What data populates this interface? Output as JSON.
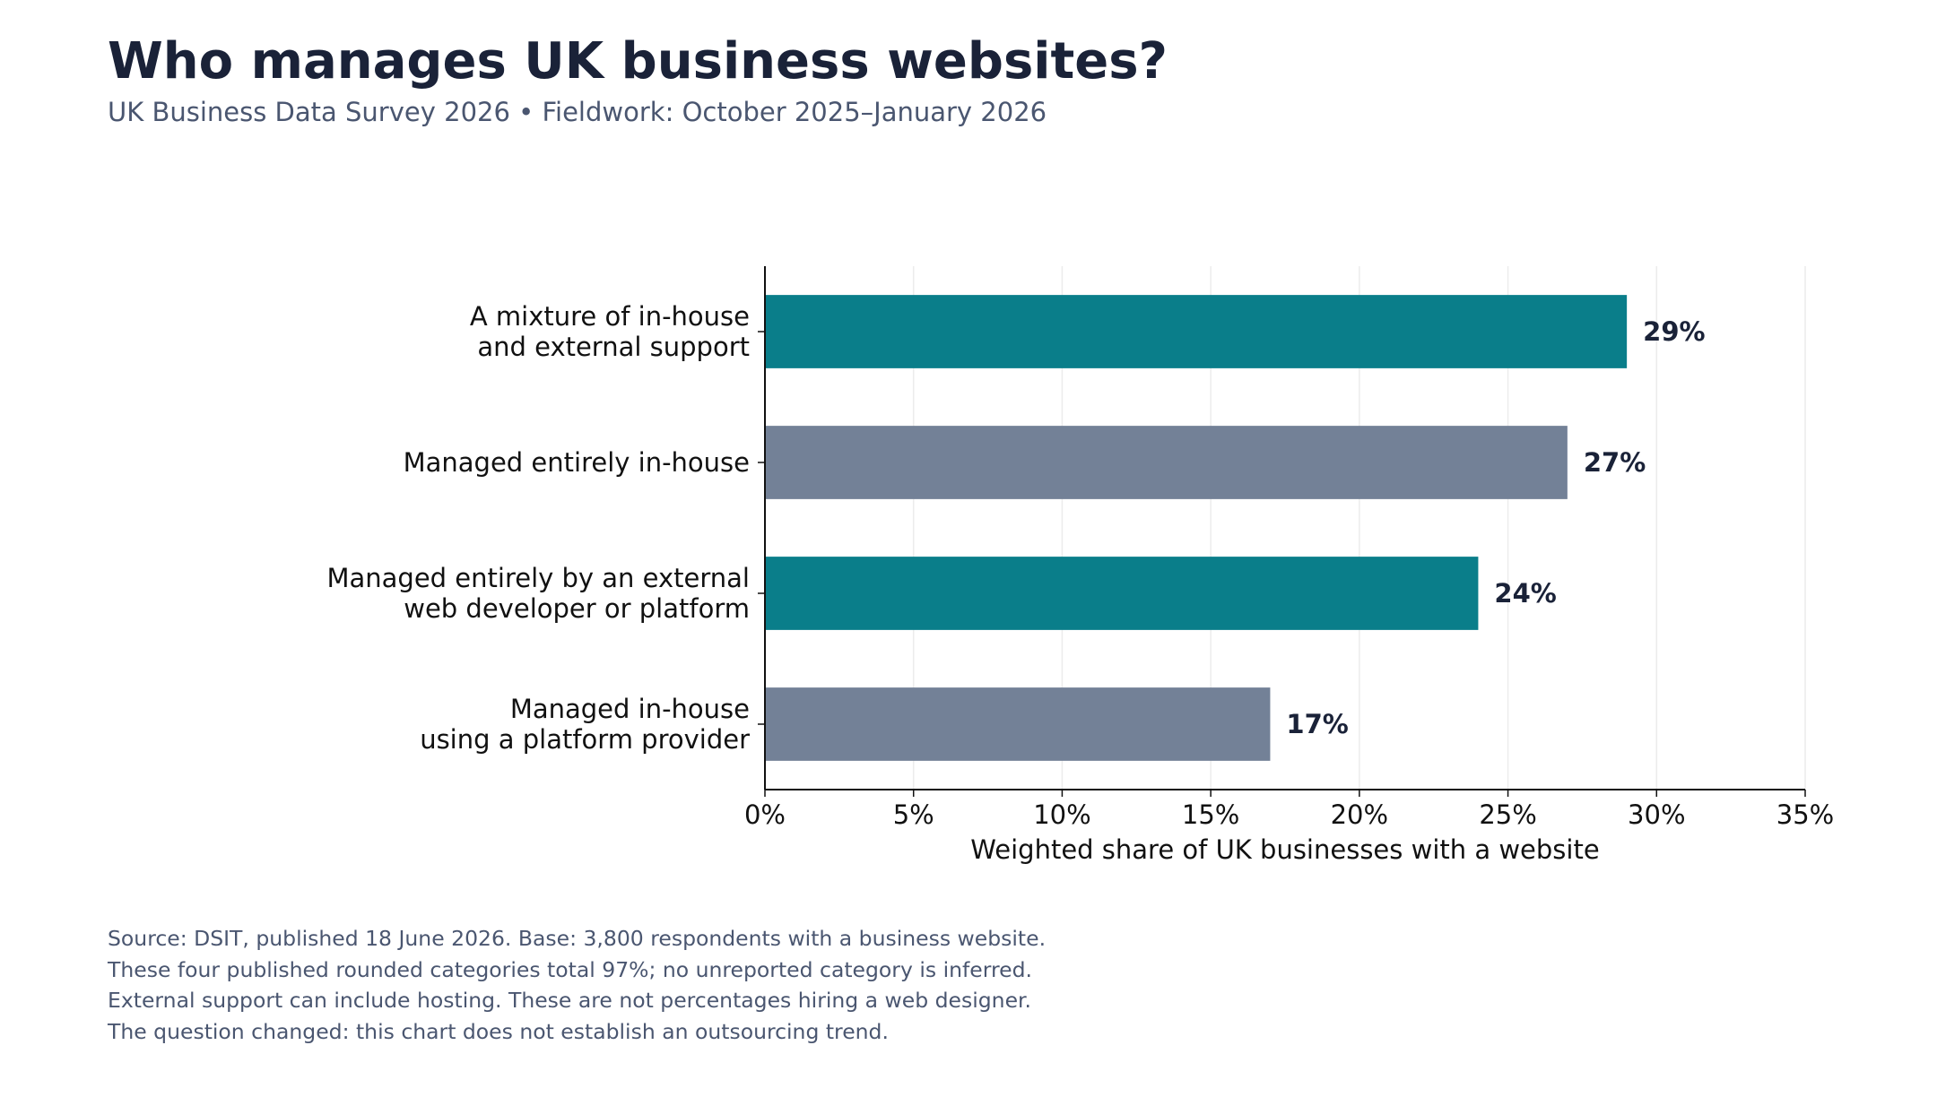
{
  "title": "Who manages UK business websites?",
  "subtitle": "UK Business Data Survey 2026 • Fieldwork: October 2025–January 2026",
  "chart_data": {
    "type": "bar",
    "orientation": "horizontal",
    "categories": [
      [
        "A mixture of in-house",
        "and external support"
      ],
      [
        "Managed entirely in-house"
      ],
      [
        "Managed entirely by an external",
        "web developer or platform"
      ],
      [
        "Managed in-house",
        "using a platform provider"
      ]
    ],
    "values": [
      29,
      27,
      24,
      17
    ],
    "value_labels": [
      "29%",
      "27%",
      "24%",
      "17%"
    ],
    "bar_colors": [
      "#0a7e8a",
      "#738197",
      "#0a7e8a",
      "#738197"
    ],
    "xlabel": "Weighted share of UK businesses with a website",
    "xlim": [
      0,
      35
    ],
    "x_ticks": [
      0,
      5,
      10,
      15,
      20,
      25,
      30,
      35
    ],
    "x_tick_labels": [
      "0%",
      "5%",
      "10%",
      "15%",
      "20%",
      "25%",
      "30%",
      "35%"
    ],
    "grid": "vertical",
    "grid_color": "#ececec"
  },
  "notes": [
    "Source: DSIT, published 18 June 2026. Base: 3,800 respondents with a business website.",
    "These four published rounded categories total 97%; no unreported category is inferred.",
    "External support can include hosting. These are not percentages hiring a web designer.",
    "The question changed: this chart does not establish an outsourcing trend."
  ]
}
